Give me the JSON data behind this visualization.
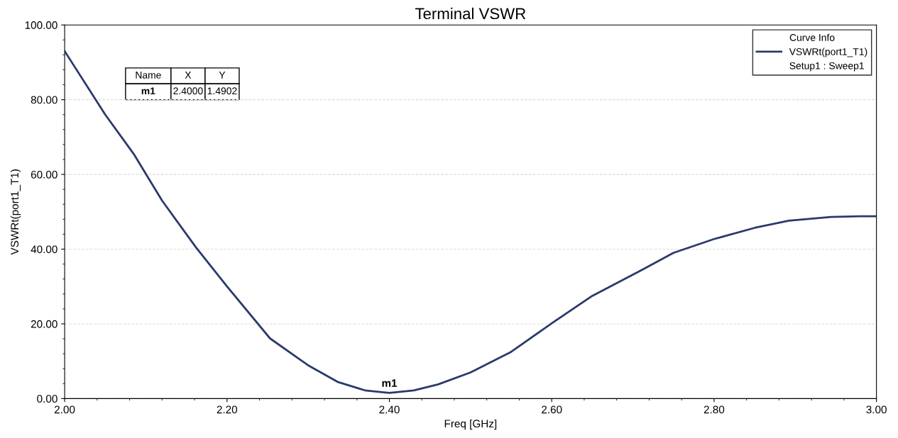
{
  "chart_data": {
    "type": "line",
    "title": "Terminal VSWR",
    "xlabel": "Freq [GHz]",
    "ylabel": "VSWRt(port1_T1)",
    "legend_title": "Curve Info",
    "legend": "top right",
    "grid": "y",
    "marker": "none",
    "line_style": "solid",
    "x": [
      2.0,
      2.05,
      2.085,
      2.12,
      2.162,
      2.2,
      2.253,
      2.3,
      2.337,
      2.37,
      2.4,
      2.43,
      2.46,
      2.5,
      2.55,
      2.601,
      2.65,
      2.71,
      2.75,
      2.8,
      2.85,
      2.892,
      2.944,
      2.98,
      3.0
    ],
    "series": [
      {
        "name": "VSWRt(port1_T1)",
        "color": "#2b3a6b",
        "values": [
          93,
          76,
          65.5,
          53,
          40.4,
          30,
          16.1,
          8.9,
          4.4,
          2.2,
          1.5,
          2.2,
          3.8,
          7,
          12.5,
          20.3,
          27.5,
          34.3,
          39,
          42.7,
          45.7,
          47.6,
          48.6,
          48.8,
          48.8
        ]
      }
    ],
    "xlim": [
      2.0,
      3.0
    ],
    "xticks": [
      {
        "value": 2.0,
        "label": "2.00"
      },
      {
        "value": 2.2,
        "label": "2.20"
      },
      {
        "value": 2.4,
        "label": "2.40"
      },
      {
        "value": 2.6,
        "label": "2.60"
      },
      {
        "value": 2.8,
        "label": "2.80"
      },
      {
        "value": 3.0,
        "label": "3.00"
      }
    ],
    "ylim": [
      0,
      100
    ],
    "yticks": [
      {
        "value": 0,
        "label": "0.00"
      },
      {
        "value": 20,
        "label": "20.00"
      },
      {
        "value": 40,
        "label": "40.00"
      },
      {
        "value": 60,
        "label": "60.00"
      },
      {
        "value": 80,
        "label": "80.00"
      },
      {
        "value": 100,
        "label": "100.00"
      }
    ],
    "annotations": [
      {
        "text": "m1",
        "x": 2.4,
        "y": 1.4902
      },
      "Name",
      "X",
      "Y",
      "m1",
      "2.4000",
      "1.4902",
      "Setup1 : Sweep1"
    ]
  }
}
